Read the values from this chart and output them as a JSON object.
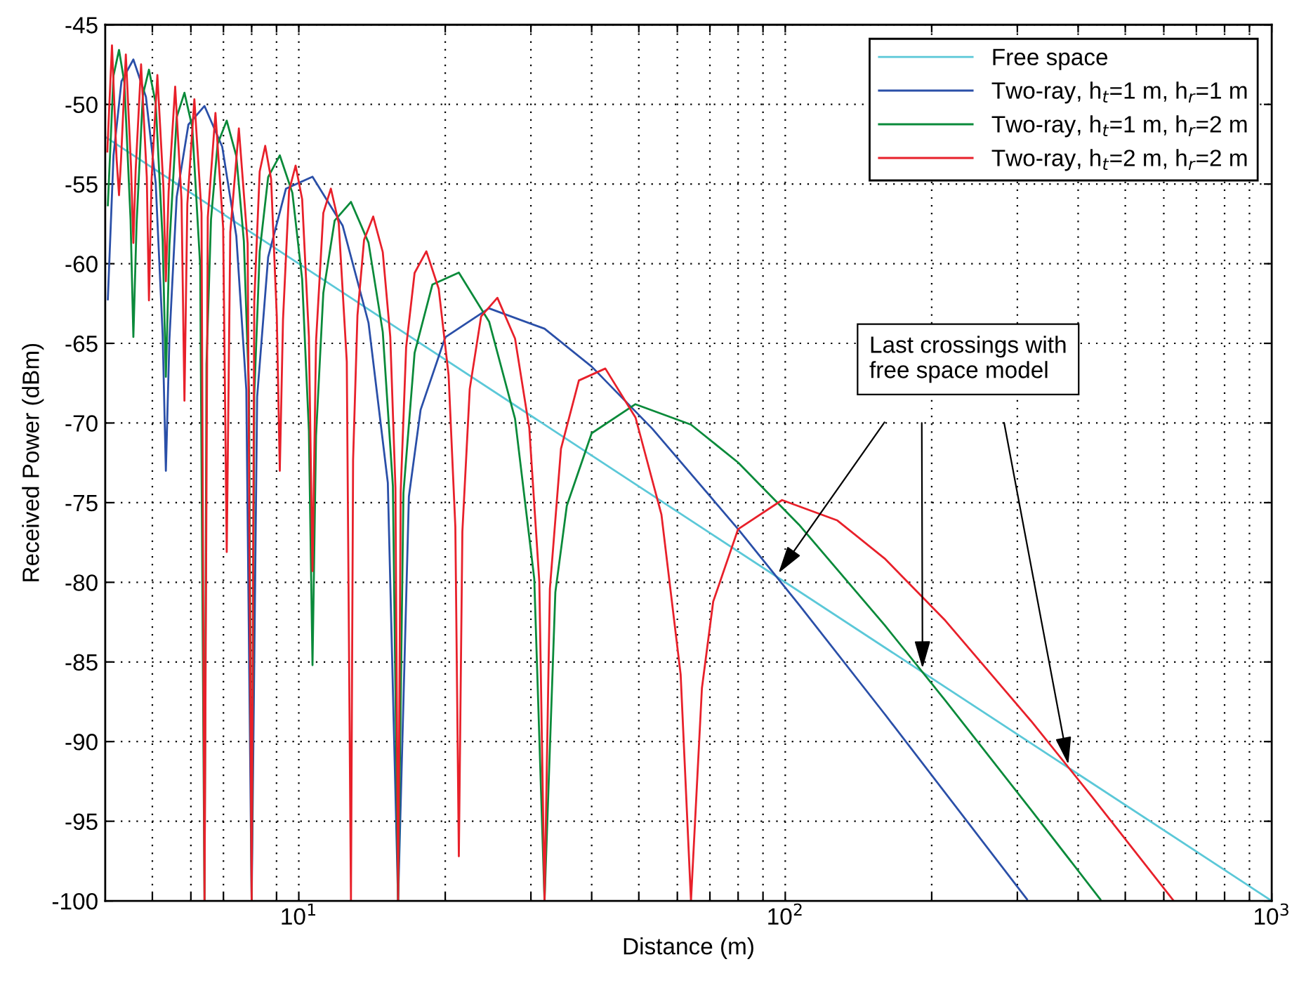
{
  "chart_data": {
    "type": "line",
    "xlabel": "Distance (m)",
    "ylabel": "Received Power (dBm)",
    "log": "x",
    "grid": true,
    "legend": "top right",
    "line_style": "solid",
    "marker": "none",
    "xlim": [
      4,
      1000
    ],
    "ylim": [
      -100,
      -45
    ],
    "xticks": [
      {
        "value": 5,
        "label": null
      },
      {
        "value": 6,
        "label": null
      },
      {
        "value": 7,
        "label": null
      },
      {
        "value": 8,
        "label": null
      },
      {
        "value": 9,
        "label": null
      },
      {
        "value": 10,
        "label": "10$^{1}$"
      },
      {
        "value": 20,
        "label": null
      },
      {
        "value": 30,
        "label": null
      },
      {
        "value": 40,
        "label": null
      },
      {
        "value": 50,
        "label": null
      },
      {
        "value": 60,
        "label": null
      },
      {
        "value": 70,
        "label": null
      },
      {
        "value": 80,
        "label": null
      },
      {
        "value": 90,
        "label": null
      },
      {
        "value": 100,
        "label": "10$^{2}$"
      },
      {
        "value": 200,
        "label": null
      },
      {
        "value": 300,
        "label": null
      },
      {
        "value": 400,
        "label": null
      },
      {
        "value": 500,
        "label": null
      },
      {
        "value": 600,
        "label": null
      },
      {
        "value": 700,
        "label": null
      },
      {
        "value": 800,
        "label": null
      },
      {
        "value": 900,
        "label": null
      },
      {
        "value": 1000,
        "label": "10$^{3}$"
      }
    ],
    "yticks": [
      -100,
      -95,
      -90,
      -85,
      -80,
      -75,
      -70,
      -65,
      -60,
      -55,
      -50,
      -45
    ],
    "annotations": [
      "Last crossings with\nfree space model"
    ],
    "series": [
      {
        "name": "Free space",
        "color": "#5bc8d8",
        "x": [
          4,
          1000
        ],
        "values": [
          -52.04,
          -100
        ]
      },
      {
        "name": "Two-ray, h$_{t}$=1 m, h$_{r}$=1 m",
        "color": "#2a4fa8",
        "x": [
          4.05,
          4.16,
          4.32,
          4.57,
          4.85,
          5.08,
          5.25,
          5.33,
          5.42,
          5.61,
          5.93,
          6.4,
          6.96,
          7.44,
          7.8,
          8,
          8.21,
          8.65,
          9.41,
          10.67,
          12.31,
          13.91,
          15.24,
          16,
          16.84,
          17.8,
          20,
          24.6,
          32,
          40,
          53.3,
          80,
          106.7,
          160,
          314
        ],
        "values": [
          -62.24,
          -53.21,
          -48.54,
          -47.18,
          -49.53,
          -54.95,
          -64.48,
          -73.0,
          -64.77,
          -55.82,
          -51.27,
          -50.1,
          -52.66,
          -58.27,
          -67.93,
          -100,
          -68.37,
          -59.58,
          -55.29,
          -54.54,
          -57.62,
          -63.71,
          -73.75,
          -100,
          -74.61,
          -69.17,
          -64.62,
          -62.8,
          -64.08,
          -66.46,
          -70.36,
          -76.66,
          -81.4,
          -88.26,
          -99.9
        ]
      },
      {
        "name": "Two-ray, h$_{t}$=1 m, h$_{r}$=2 m",
        "color": "#0a8a3a",
        "x": [
          4.05,
          4.16,
          4.27,
          4.38,
          4.51,
          4.57,
          4.64,
          4.78,
          4.92,
          5.08,
          5.25,
          5.33,
          5.42,
          5.61,
          5.82,
          6.04,
          6.27,
          6.4,
          6.46,
          6.6,
          6.81,
          7.11,
          7.44,
          7.71,
          7.9,
          8,
          8.1,
          8.31,
          8.65,
          9.14,
          9.7,
          10.16,
          10.49,
          10.67,
          10.85,
          11.23,
          11.85,
          12.8,
          13.91,
          14.88,
          15.61,
          16,
          16.41,
          17.3,
          18.82,
          21.33,
          24.62,
          27.83,
          30.48,
          32,
          33.68,
          35.56,
          40,
          49.2,
          64,
          80,
          106.7,
          160,
          213.3,
          320,
          444.4
        ],
        "values": [
          -56.33,
          -48.19,
          -46.58,
          -48.65,
          -57.25,
          -64.6,
          -57.5,
          -49.4,
          -47.82,
          -49.93,
          -58.57,
          -67.1,
          -58.86,
          -50.8,
          -49.27,
          -51.43,
          -60.13,
          -100,
          -66.3,
          -57.22,
          -52.48,
          -51.02,
          -53.25,
          -58.58,
          -68.04,
          -100,
          -68.26,
          -59.23,
          -54.56,
          -53.2,
          -55.55,
          -60.97,
          -70.5,
          -85.2,
          -70.79,
          -61.84,
          -57.29,
          -56.12,
          -58.68,
          -64.29,
          -73.95,
          -100,
          -74.39,
          -65.6,
          -61.31,
          -60.56,
          -63.64,
          -69.73,
          -79.77,
          -100,
          -80.63,
          -75.19,
          -70.64,
          -68.82,
          -70.1,
          -72.48,
          -76.38,
          -82.68,
          -87.42,
          -94.28,
          -99.91
        ]
      },
      {
        "name": "Two-ray, h$_{t}$=2 m, h$_{r}$=2 m",
        "color": "#e8202a",
        "x": [
          4.04,
          4.13,
          4.22,
          4.27,
          4.31,
          4.41,
          4.52,
          4.57,
          4.62,
          4.74,
          4.87,
          4.92,
          4.98,
          5.12,
          5.27,
          5.33,
          5.4,
          5.57,
          5.74,
          5.82,
          5.9,
          6.1,
          6.31,
          6.4,
          6.5,
          6.74,
          6.99,
          7.11,
          7.23,
          7.53,
          7.85,
          8,
          8.1,
          8.31,
          8.53,
          8.77,
          9.01,
          9.14,
          9.28,
          9.55,
          9.85,
          10.16,
          10.49,
          10.67,
          10.85,
          11.23,
          11.64,
          12.08,
          12.55,
          12.8,
          12.93,
          13.2,
          13.62,
          14.22,
          14.88,
          15.42,
          15.8,
          16,
          16.2,
          16.62,
          17.3,
          18.29,
          19.39,
          20.32,
          20.98,
          21.33,
          21.69,
          22.46,
          23.7,
          25.6,
          27.83,
          29.77,
          31.22,
          32,
          32.82,
          34.59,
          37.65,
          42.67,
          49.23,
          55.65,
          60.95,
          64,
          67.4,
          71.1,
          80,
          98.5,
          128,
          160,
          213.3,
          320,
          426.7,
          627.5
        ],
        "values": [
          -52.96,
          -46.29,
          -53.35,
          -55.7,
          -53.52,
          -46.87,
          -53.94,
          -58.7,
          -54.13,
          -47.49,
          -54.58,
          -62.3,
          -54.78,
          -48.16,
          -55.27,
          -61.1,
          -55.49,
          -48.89,
          -56.01,
          -68.6,
          -56.25,
          -49.68,
          -56.83,
          -100,
          -57.09,
          -50.54,
          -57.73,
          -78.1,
          -58.02,
          -51.51,
          -58.74,
          -100,
          -62.35,
          -54.21,
          -52.6,
          -54.67,
          -63.27,
          -73.0,
          -63.52,
          -55.42,
          -53.84,
          -55.95,
          -64.59,
          -79.3,
          -64.88,
          -56.82,
          -55.29,
          -57.45,
          -66.15,
          -100,
          -72.32,
          -63.24,
          -58.5,
          -57.04,
          -59.27,
          -64.6,
          -74.06,
          -100,
          -74.28,
          -65.25,
          -60.58,
          -59.22,
          -61.57,
          -66.99,
          -76.52,
          -97.2,
          -76.81,
          -67.86,
          -63.31,
          -62.14,
          -64.7,
          -70.31,
          -79.97,
          -100,
          -80.41,
          -71.62,
          -67.33,
          -66.58,
          -69.66,
          -75.75,
          -85.79,
          -100,
          -86.65,
          -81.21,
          -76.66,
          -74.84,
          -76.12,
          -78.5,
          -82.4,
          -88.7,
          -93.44,
          -99.96
        ]
      }
    ]
  }
}
